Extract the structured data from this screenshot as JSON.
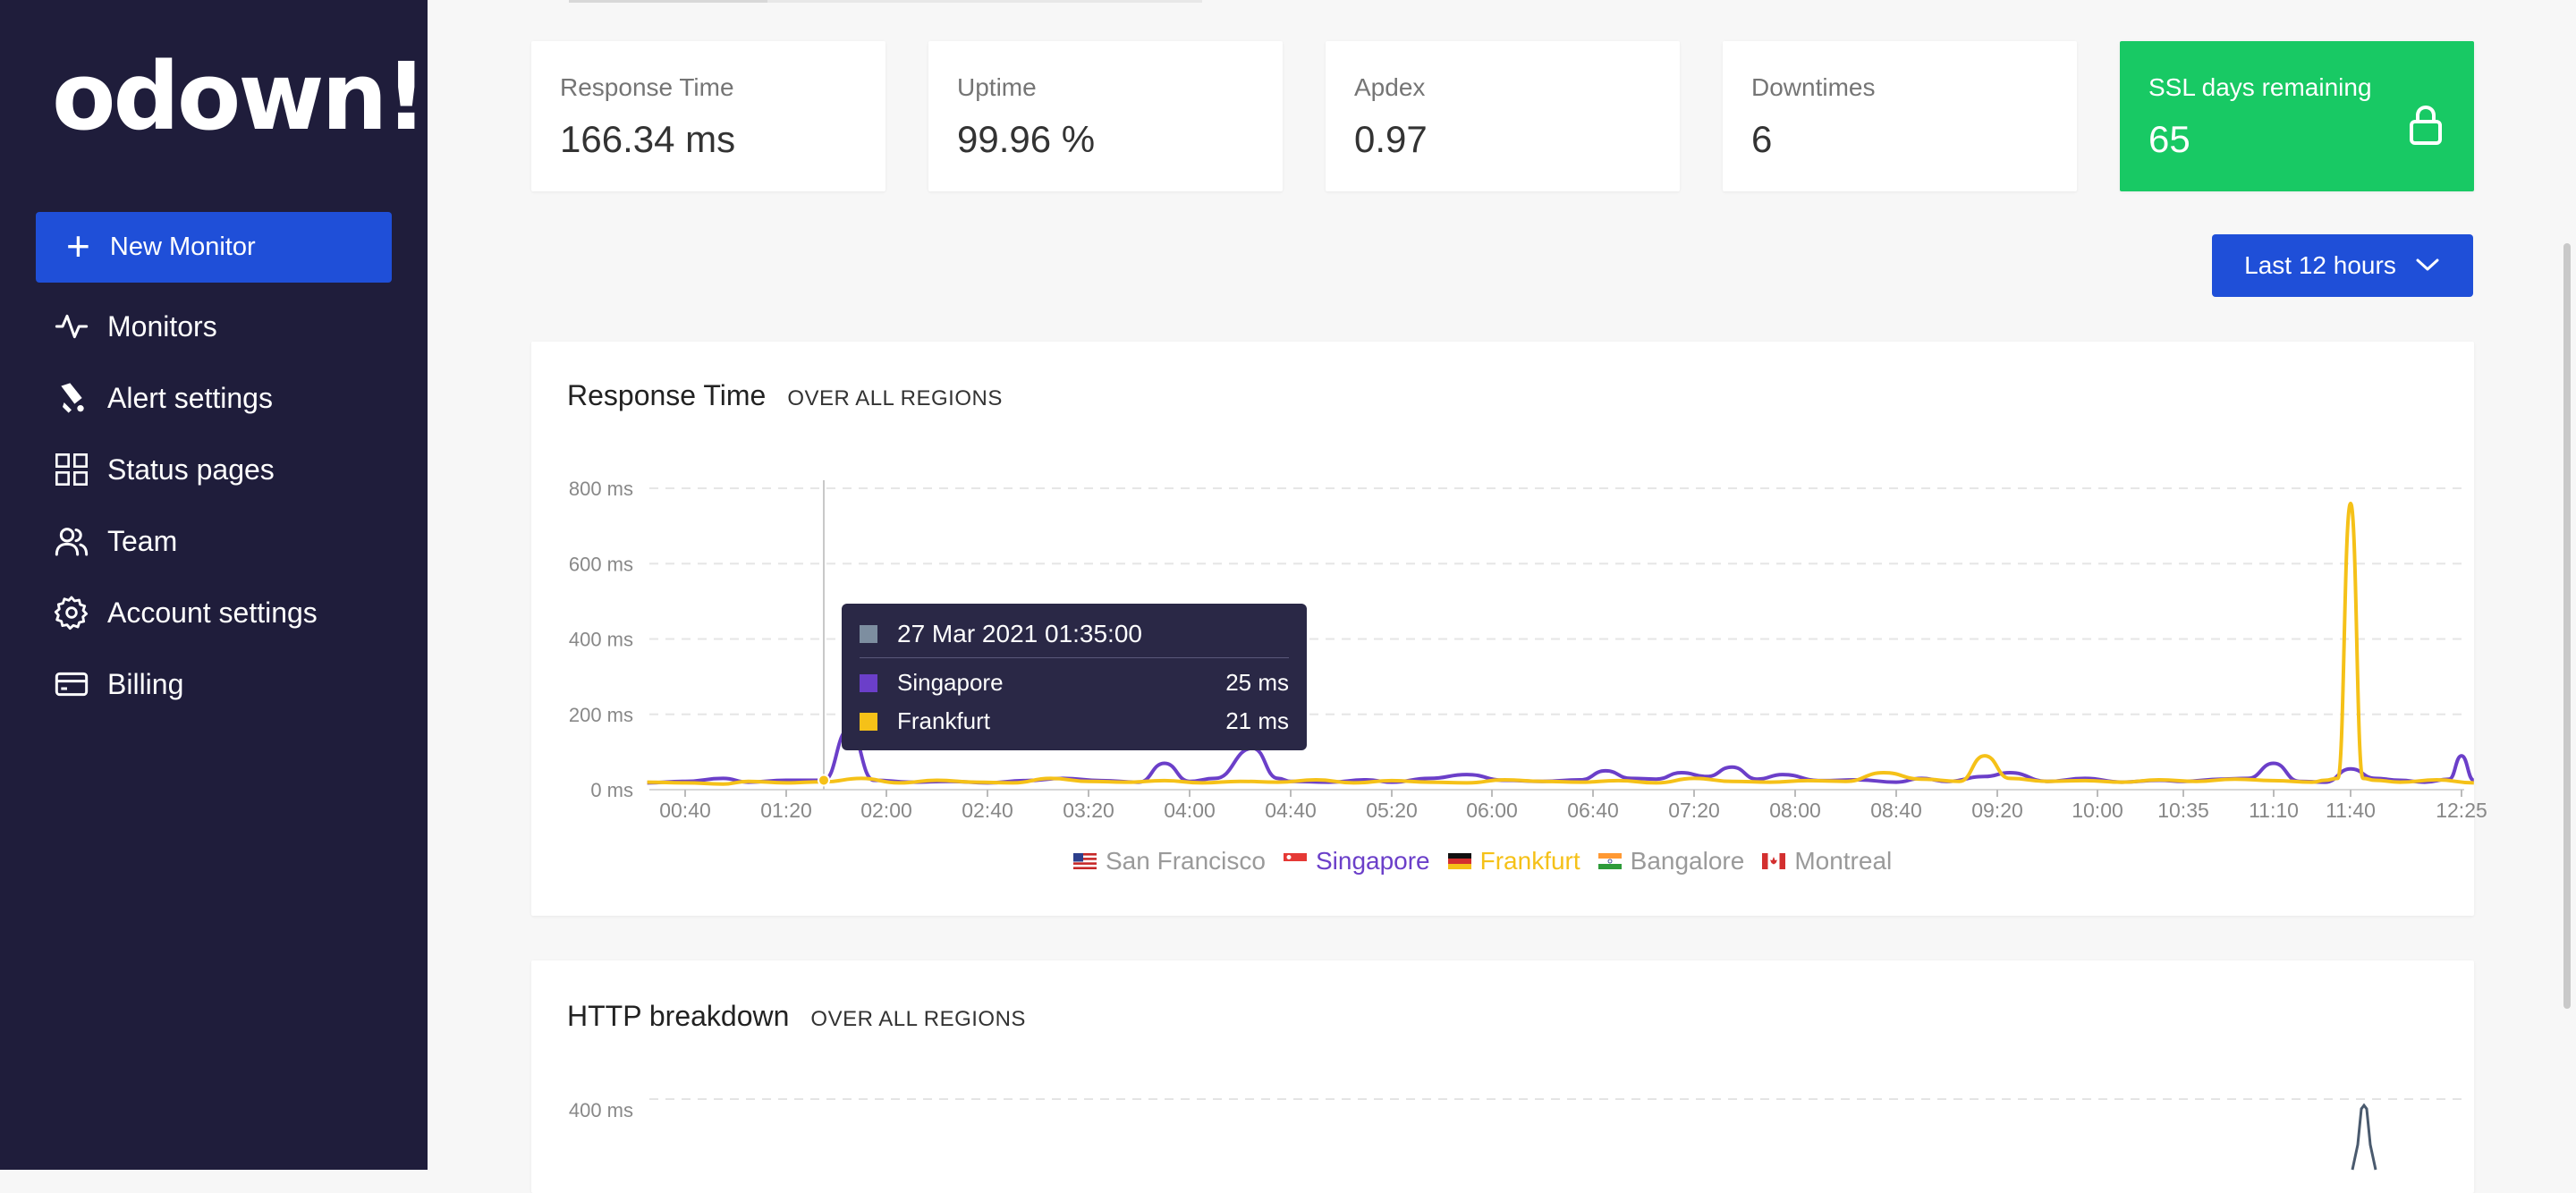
{
  "sidebar": {
    "logo": "odown!",
    "new_monitor": "New Monitor",
    "items": [
      {
        "label": "Monitors",
        "icon": "activity-icon"
      },
      {
        "label": "Alert settings",
        "icon": "bell-icon"
      },
      {
        "label": "Status pages",
        "icon": "grid-icon"
      },
      {
        "label": "Team",
        "icon": "users-icon"
      },
      {
        "label": "Account settings",
        "icon": "gear-icon"
      },
      {
        "label": "Billing",
        "icon": "credit-card-icon"
      }
    ]
  },
  "stats": [
    {
      "label": "Response Time",
      "value": "166.34 ms"
    },
    {
      "label": "Uptime",
      "value": "99.96 %"
    },
    {
      "label": "Apdex",
      "value": "0.97"
    },
    {
      "label": "Downtimes",
      "value": "6"
    },
    {
      "label": "SSL days remaining",
      "value": "65",
      "icon": "lock-icon"
    }
  ],
  "period": {
    "label": "Last 12 hours"
  },
  "response_card": {
    "title": "Response Time",
    "subtitle": "OVER ALL REGIONS"
  },
  "http_card": {
    "title": "HTTP breakdown",
    "subtitle": "OVER ALL REGIONS",
    "first_tick": "400 ms"
  },
  "tooltip": {
    "title": "27 Mar 2021 01:35:00",
    "rows": [
      {
        "name": "Singapore",
        "value": "25 ms"
      },
      {
        "name": "Frankfurt",
        "value": "21 ms"
      }
    ]
  },
  "colors": {
    "sidebar": "#1f1d3b",
    "accent": "#1f4fd8",
    "ssl": "#18c964",
    "singapore": "#6b3fc9",
    "frankfurt": "#f5c118",
    "inactive_legend": "#9a9a9a"
  },
  "chart_data": {
    "type": "line",
    "title": "Response Time",
    "subtitle": "OVER ALL REGIONS",
    "y_ticks": [
      "0 ms",
      "200 ms",
      "400 ms",
      "600 ms",
      "800 ms"
    ],
    "ylim": [
      0,
      800
    ],
    "x_ticks": [
      "00:40",
      "01:20",
      "02:00",
      "02:40",
      "03:20",
      "04:00",
      "04:40",
      "05:20",
      "06:00",
      "06:40",
      "07:20",
      "08:00",
      "08:40",
      "09:20",
      "10:00",
      "10:35",
      "11:10",
      "11:40",
      "12:25"
    ],
    "grid": true,
    "legend_position": "bottom",
    "legend": [
      {
        "name": "San Francisco",
        "active": false
      },
      {
        "name": "Singapore",
        "active": true
      },
      {
        "name": "Frankfurt",
        "active": true
      },
      {
        "name": "Bangalore",
        "active": false
      },
      {
        "name": "Montreal",
        "active": false
      }
    ],
    "series": [
      {
        "name": "Singapore",
        "color": "#6b3fc9",
        "x": [
          "00:25",
          "00:40",
          "00:55",
          "01:05",
          "01:20",
          "01:35",
          "01:45",
          "01:55",
          "02:10",
          "02:25",
          "02:40",
          "02:55",
          "03:10",
          "03:25",
          "03:40",
          "03:50",
          "04:00",
          "04:10",
          "04:25",
          "04:35",
          "04:40",
          "04:55",
          "05:10",
          "05:20",
          "05:35",
          "05:50",
          "06:05",
          "06:20",
          "06:35",
          "06:45",
          "06:55",
          "07:05",
          "07:15",
          "07:25",
          "07:35",
          "07:45",
          "07:55",
          "08:10",
          "08:25",
          "08:40",
          "08:50",
          "09:00",
          "09:15",
          "09:25",
          "09:40",
          "09:55",
          "10:10",
          "10:25",
          "10:35",
          "10:50",
          "11:00",
          "11:10",
          "11:20",
          "11:30",
          "11:40",
          "11:50",
          "12:00",
          "12:10",
          "12:20",
          "12:25",
          "12:30"
        ],
        "y": [
          18,
          22,
          30,
          20,
          25,
          25,
          160,
          25,
          20,
          22,
          18,
          24,
          30,
          24,
          20,
          70,
          22,
          30,
          110,
          30,
          22,
          20,
          26,
          20,
          30,
          40,
          25,
          22,
          26,
          50,
          30,
          28,
          45,
          35,
          60,
          28,
          40,
          24,
          26,
          20,
          30,
          22,
          35,
          45,
          22,
          30,
          20,
          25,
          22,
          28,
          30,
          70,
          22,
          20,
          55,
          30,
          25,
          20,
          28,
          90,
          25
        ]
      },
      {
        "name": "Frankfurt",
        "color": "#f5c118",
        "x": [
          "00:25",
          "00:40",
          "00:55",
          "01:05",
          "01:20",
          "01:35",
          "01:50",
          "02:05",
          "02:20",
          "02:35",
          "02:50",
          "03:05",
          "03:20",
          "03:35",
          "03:50",
          "04:05",
          "04:20",
          "04:35",
          "04:50",
          "05:05",
          "05:20",
          "05:35",
          "05:50",
          "06:05",
          "06:20",
          "06:35",
          "06:50",
          "07:05",
          "07:20",
          "07:35",
          "07:50",
          "08:05",
          "08:20",
          "08:35",
          "08:50",
          "09:05",
          "09:15",
          "09:25",
          "09:40",
          "09:55",
          "10:10",
          "10:25",
          "10:40",
          "10:55",
          "11:10",
          "11:25",
          "11:30",
          "11:35",
          "11:40",
          "11:45",
          "11:50",
          "12:00",
          "12:15",
          "12:30"
        ],
        "y": [
          20,
          18,
          15,
          22,
          18,
          21,
          30,
          18,
          25,
          20,
          18,
          30,
          22,
          20,
          24,
          18,
          22,
          20,
          26,
          18,
          24,
          20,
          18,
          26,
          22,
          20,
          24,
          18,
          30,
          22,
          20,
          24,
          22,
          45,
          28,
          22,
          90,
          30,
          22,
          24,
          20,
          26,
          22,
          28,
          24,
          20,
          25,
          30,
          760,
          30,
          25,
          20,
          26,
          18
        ]
      }
    ]
  }
}
